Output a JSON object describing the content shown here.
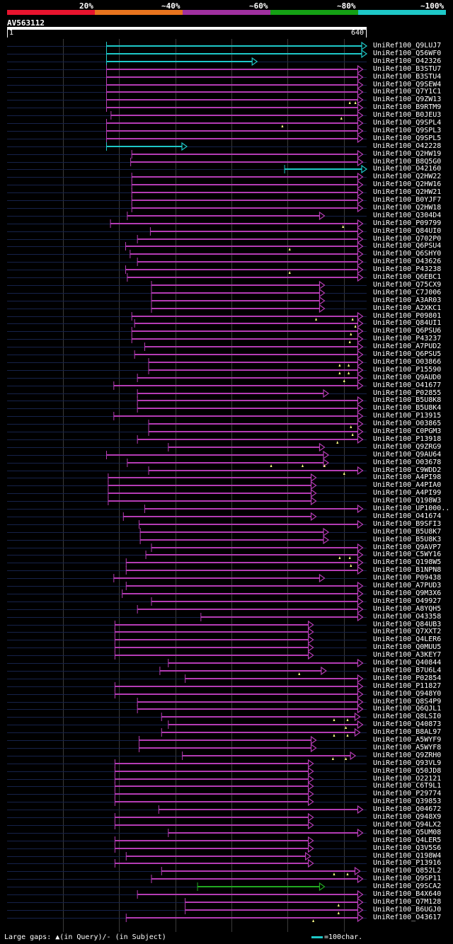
{
  "legend": {
    "segments": [
      {
        "label": "20%",
        "color": "#e8142e"
      },
      {
        "label": "~40%",
        "color": "#e8741e"
      },
      {
        "label": "~60%",
        "color": "#a030a0"
      },
      {
        "label": "~80%",
        "color": "#14a014"
      },
      {
        "label": "~100%",
        "color": "#1ec8c8"
      }
    ]
  },
  "query": {
    "name": "AV563112",
    "start": "1",
    "end": "640",
    "length": 640
  },
  "colors": {
    "pct100": "#1ec8c8",
    "pct80": "#22aa22",
    "pct60": "#b43cb4",
    "query_line": "#16224a",
    "gap_marker": "#ffff88"
  },
  "hits": [
    {
      "id": "UniRef100_Q9LUJ7",
      "s": 177,
      "e": 640,
      "c": "pct100"
    },
    {
      "id": "UniRef100_Q56WF0",
      "s": 177,
      "e": 640,
      "c": "pct100"
    },
    {
      "id": "UniRef100_O42326",
      "s": 177,
      "e": 445,
      "c": "pct100"
    },
    {
      "id": "UniRef100_B3STU7",
      "s": 177,
      "e": 633,
      "c": "pct60"
    },
    {
      "id": "UniRef100_B3STU4",
      "s": 177,
      "e": 633,
      "c": "pct60"
    },
    {
      "id": "UniRef100_Q9SEW4",
      "s": 177,
      "e": 633,
      "c": "pct60"
    },
    {
      "id": "UniRef100_Q7Y1C1",
      "s": 177,
      "e": 633,
      "c": "pct60"
    },
    {
      "id": "UniRef100_Q9ZW13",
      "s": 177,
      "e": 633,
      "c": "pct60",
      "g": [
        610,
        620
      ]
    },
    {
      "id": "UniRef100_B9RTM9",
      "s": 177,
      "e": 633,
      "c": "pct60"
    },
    {
      "id": "UniRef100_B0JEU3",
      "s": 185,
      "e": 633,
      "c": "pct60",
      "g": [
        595
      ]
    },
    {
      "id": "UniRef100_Q9SPL4",
      "s": 177,
      "e": 633,
      "c": "pct60",
      "g": [
        490
      ]
    },
    {
      "id": "UniRef100_Q9SPL3",
      "s": 177,
      "e": 633,
      "c": "pct60"
    },
    {
      "id": "UniRef100_Q9SPL5",
      "s": 177,
      "e": 633,
      "c": "pct60"
    },
    {
      "id": "UniRef100_O42228",
      "s": 177,
      "e": 320,
      "c": "pct100"
    },
    {
      "id": "UniRef100_Q2HW19",
      "s": 222,
      "e": 633,
      "c": "pct60"
    },
    {
      "id": "UniRef100_B8Q5G0",
      "s": 220,
      "e": 633,
      "c": "pct60"
    },
    {
      "id": "UniRef100_O42160",
      "s": 494,
      "e": 640,
      "c": "pct100"
    },
    {
      "id": "UniRef100_Q2HW22",
      "s": 222,
      "e": 633,
      "c": "pct60"
    },
    {
      "id": "UniRef100_Q2HW16",
      "s": 222,
      "e": 633,
      "c": "pct60"
    },
    {
      "id": "UniRef100_Q2HW21",
      "s": 222,
      "e": 633,
      "c": "pct60"
    },
    {
      "id": "UniRef100_B0YJF7",
      "s": 222,
      "e": 633,
      "c": "pct60"
    },
    {
      "id": "UniRef100_Q2HW18",
      "s": 222,
      "e": 633,
      "c": "pct60"
    },
    {
      "id": "UniRef100_Q304D4",
      "s": 214,
      "e": 565,
      "c": "pct60"
    },
    {
      "id": "UniRef100_P09799",
      "s": 184,
      "e": 633,
      "c": "pct60",
      "g": [
        598
      ]
    },
    {
      "id": "UniRef100_Q84UI0",
      "s": 255,
      "e": 633,
      "c": "pct60"
    },
    {
      "id": "UniRef100_Q702P0",
      "s": 232,
      "e": 633,
      "c": "pct60"
    },
    {
      "id": "UniRef100_Q6PSU4",
      "s": 211,
      "e": 633,
      "c": "pct60",
      "g": [
        503
      ]
    },
    {
      "id": "UniRef100_Q6SHY0",
      "s": 219,
      "e": 633,
      "c": "pct60"
    },
    {
      "id": "UniRef100_O43626",
      "s": 232,
      "e": 633,
      "c": "pct60"
    },
    {
      "id": "UniRef100_P43238",
      "s": 211,
      "e": 633,
      "c": "pct60",
      "g": [
        503
      ]
    },
    {
      "id": "UniRef100_Q6EBC1",
      "s": 214,
      "e": 633,
      "c": "pct60"
    },
    {
      "id": "UniRef100_Q75CX9",
      "s": 257,
      "e": 565,
      "c": "pct60"
    },
    {
      "id": "UniRef100_C7J006",
      "s": 257,
      "e": 565,
      "c": "pct60"
    },
    {
      "id": "UniRef100_A3AR03",
      "s": 257,
      "e": 565,
      "c": "pct60"
    },
    {
      "id": "UniRef100_A2XKC1",
      "s": 257,
      "e": 565,
      "c": "pct60"
    },
    {
      "id": "UniRef100_P09801",
      "s": 222,
      "e": 633,
      "c": "pct60",
      "g": [
        550,
        615
      ]
    },
    {
      "id": "UniRef100_Q84UI1",
      "s": 227,
      "e": 633,
      "c": "pct60",
      "g": [
        620
      ]
    },
    {
      "id": "UniRef100_Q6PSU6",
      "s": 222,
      "e": 633,
      "c": "pct60",
      "g": [
        612
      ]
    },
    {
      "id": "UniRef100_P43237",
      "s": 222,
      "e": 633,
      "c": "pct60",
      "g": [
        610
      ]
    },
    {
      "id": "UniRef100_A7PUD2",
      "s": 245,
      "e": 633,
      "c": "pct60"
    },
    {
      "id": "UniRef100_Q6PSU5",
      "s": 227,
      "e": 633,
      "c": "pct60"
    },
    {
      "id": "UniRef100_O03866",
      "s": 252,
      "e": 633,
      "c": "pct60",
      "g": [
        592,
        608
      ]
    },
    {
      "id": "UniRef100_P15590",
      "s": 252,
      "e": 633,
      "c": "pct60",
      "g": [
        592,
        608
      ]
    },
    {
      "id": "UniRef100_Q9AUD0",
      "s": 232,
      "e": 633,
      "c": "pct60",
      "g": [
        600
      ]
    },
    {
      "id": "UniRef100_O41677",
      "s": 190,
      "e": 633,
      "c": "pct60"
    },
    {
      "id": "UniRef100_P02855",
      "s": 232,
      "e": 572,
      "c": "pct60"
    },
    {
      "id": "UniRef100_B5U8K8",
      "s": 232,
      "e": 633,
      "c": "pct60"
    },
    {
      "id": "UniRef100_B5U8K4",
      "s": 232,
      "e": 633,
      "c": "pct60"
    },
    {
      "id": "UniRef100_P13915",
      "s": 190,
      "e": 633,
      "c": "pct60"
    },
    {
      "id": "UniRef100_O03865",
      "s": 252,
      "e": 633,
      "c": "pct60",
      "g": [
        612
      ]
    },
    {
      "id": "UniRef100_C0PGM3",
      "s": 252,
      "e": 633,
      "c": "pct60",
      "g": [
        615
      ]
    },
    {
      "id": "UniRef100_P13918",
      "s": 232,
      "e": 633,
      "c": "pct60",
      "g": [
        588
      ]
    },
    {
      "id": "UniRef100_Q9ZRG9",
      "s": 287,
      "e": 565,
      "c": "pct60"
    },
    {
      "id": "UniRef100_Q9AU64",
      "s": 177,
      "e": 572,
      "c": "pct60"
    },
    {
      "id": "UniRef100_O03678",
      "s": 214,
      "e": 572,
      "c": "pct60",
      "g": [
        470,
        526,
        565
      ]
    },
    {
      "id": "UniRef100_C9WDD2",
      "s": 252,
      "e": 633,
      "c": "pct60",
      "g": [
        600
      ]
    },
    {
      "id": "UniRef100_A4PI98",
      "s": 180,
      "e": 550,
      "c": "pct60"
    },
    {
      "id": "UniRef100_A4PIA0",
      "s": 180,
      "e": 550,
      "c": "pct60"
    },
    {
      "id": "UniRef100_A4PI99",
      "s": 180,
      "e": 550,
      "c": "pct60"
    },
    {
      "id": "UniRef100_Q198W3",
      "s": 180,
      "e": 550,
      "c": "pct60"
    },
    {
      "id": "UniRef100_UP1000..",
      "s": 245,
      "e": 633,
      "c": "pct60"
    },
    {
      "id": "UniRef100_O41674",
      "s": 207,
      "e": 550,
      "c": "pct60"
    },
    {
      "id": "UniRef100_B9SFI3",
      "s": 235,
      "e": 633,
      "c": "pct60"
    },
    {
      "id": "UniRef100_B5U8K7",
      "s": 237,
      "e": 572,
      "c": "pct60"
    },
    {
      "id": "UniRef100_B5U8K3",
      "s": 237,
      "e": 572,
      "c": "pct60"
    },
    {
      "id": "UniRef100_Q9AVP7",
      "s": 257,
      "e": 633,
      "c": "pct60"
    },
    {
      "id": "UniRef100_C5WY16",
      "s": 247,
      "e": 633,
      "c": "pct60",
      "g": [
        592,
        610
      ]
    },
    {
      "id": "UniRef100_Q198W5",
      "s": 212,
      "e": 633,
      "c": "pct60",
      "g": [
        612
      ]
    },
    {
      "id": "UniRef100_B1NPN8",
      "s": 212,
      "e": 633,
      "c": "pct60"
    },
    {
      "id": "UniRef100_P09438",
      "s": 190,
      "e": 565,
      "c": "pct60"
    },
    {
      "id": "UniRef100_A7PUD3",
      "s": 212,
      "e": 633,
      "c": "pct60"
    },
    {
      "id": "UniRef100_Q9M3X6",
      "s": 205,
      "e": 633,
      "c": "pct60"
    },
    {
      "id": "UniRef100_O49927",
      "s": 257,
      "e": 633,
      "c": "pct60"
    },
    {
      "id": "UniRef100_A8YQH5",
      "s": 232,
      "e": 633,
      "c": "pct60"
    },
    {
      "id": "UniRef100_O43358",
      "s": 345,
      "e": 633,
      "c": "pct60"
    },
    {
      "id": "UniRef100_Q84UB3",
      "s": 192,
      "e": 545,
      "c": "pct60"
    },
    {
      "id": "UniRef100_Q7XXT2",
      "s": 192,
      "e": 545,
      "c": "pct60"
    },
    {
      "id": "UniRef100_Q4LER6",
      "s": 192,
      "e": 545,
      "c": "pct60"
    },
    {
      "id": "UniRef100_Q0MUU5",
      "s": 192,
      "e": 545,
      "c": "pct60"
    },
    {
      "id": "UniRef100_A3KEY7",
      "s": 192,
      "e": 545,
      "c": "pct60"
    },
    {
      "id": "UniRef100_Q40844",
      "s": 287,
      "e": 633,
      "c": "pct60"
    },
    {
      "id": "UniRef100_B7U6L4",
      "s": 272,
      "e": 568,
      "c": "pct60",
      "g": [
        520
      ]
    },
    {
      "id": "UniRef100_P02854",
      "s": 317,
      "e": 633,
      "c": "pct60"
    },
    {
      "id": "UniRef100_P11827",
      "s": 192,
      "e": 633,
      "c": "pct60"
    },
    {
      "id": "UniRef100_Q948Y0",
      "s": 192,
      "e": 633,
      "c": "pct60"
    },
    {
      "id": "UniRef100_Q8S4P9",
      "s": 232,
      "e": 633,
      "c": "pct60"
    },
    {
      "id": "UniRef100_Q6QJL1",
      "s": 232,
      "e": 633,
      "c": "pct60"
    },
    {
      "id": "UniRef100_Q8LSI0",
      "s": 275,
      "e": 628,
      "c": "pct60",
      "g": [
        582,
        606
      ]
    },
    {
      "id": "UniRef100_Q40873",
      "s": 287,
      "e": 633,
      "c": "pct60",
      "g": [
        603
      ]
    },
    {
      "id": "UniRef100_B8AL97",
      "s": 275,
      "e": 628,
      "c": "pct60",
      "g": [
        582,
        606
      ]
    },
    {
      "id": "UniRef100_A5WYF9",
      "s": 235,
      "e": 550,
      "c": "pct60"
    },
    {
      "id": "UniRef100_A5WYF8",
      "s": 235,
      "e": 550,
      "c": "pct60"
    },
    {
      "id": "UniRef100_Q9ZRH0",
      "s": 312,
      "e": 620,
      "c": "pct60",
      "g": [
        580,
        603
      ]
    },
    {
      "id": "UniRef100_Q93VL9",
      "s": 192,
      "e": 545,
      "c": "pct60"
    },
    {
      "id": "UniRef100_Q50JD8",
      "s": 192,
      "e": 545,
      "c": "pct60"
    },
    {
      "id": "UniRef100_O22121",
      "s": 192,
      "e": 545,
      "c": "pct60"
    },
    {
      "id": "UniRef100_C6T9L1",
      "s": 192,
      "e": 545,
      "c": "pct60"
    },
    {
      "id": "UniRef100_P29774",
      "s": 192,
      "e": 545,
      "c": "pct60"
    },
    {
      "id": "UniRef100_Q39853",
      "s": 192,
      "e": 545,
      "c": "pct60"
    },
    {
      "id": "UniRef100_Q04672",
      "s": 270,
      "e": 633,
      "c": "pct60"
    },
    {
      "id": "UniRef100_Q948X9",
      "s": 192,
      "e": 545,
      "c": "pct60"
    },
    {
      "id": "UniRef100_Q94LX2",
      "s": 192,
      "e": 545,
      "c": "pct60"
    },
    {
      "id": "UniRef100_Q5UM08",
      "s": 287,
      "e": 633,
      "c": "pct60"
    },
    {
      "id": "UniRef100_Q4LER5",
      "s": 192,
      "e": 545,
      "c": "pct60"
    },
    {
      "id": "UniRef100_Q3V5S6",
      "s": 192,
      "e": 545,
      "c": "pct60"
    },
    {
      "id": "UniRef100_Q198W4",
      "s": 212,
      "e": 540,
      "c": "pct60"
    },
    {
      "id": "UniRef100_P13916",
      "s": 192,
      "e": 545,
      "c": "pct60"
    },
    {
      "id": "UniRef100_Q852L2",
      "s": 275,
      "e": 628,
      "c": "pct60",
      "g": [
        582,
        606
      ]
    },
    {
      "id": "UniRef100_Q9SP11",
      "s": 257,
      "e": 633,
      "c": "pct60"
    },
    {
      "id": "UniRef100_Q9SCA2",
      "s": 339,
      "e": 565,
      "c": "pct80"
    },
    {
      "id": "UniRef100_B4X640",
      "s": 232,
      "e": 633,
      "c": "pct60"
    },
    {
      "id": "UniRef100_Q7M128",
      "s": 317,
      "e": 633,
      "c": "pct60",
      "g": [
        590
      ]
    },
    {
      "id": "UniRef100_B6UGJ0",
      "s": 317,
      "e": 633,
      "c": "pct60",
      "g": [
        590
      ]
    },
    {
      "id": "UniRef100_O43617",
      "s": 212,
      "e": 633,
      "c": "pct60",
      "g": [
        545
      ]
    }
  ],
  "footer": {
    "gaps_label": "Large gaps:",
    "query_gap": "(in Query)/",
    "subject_gap": "- (in Subject)",
    "scale_label": "=100char."
  }
}
